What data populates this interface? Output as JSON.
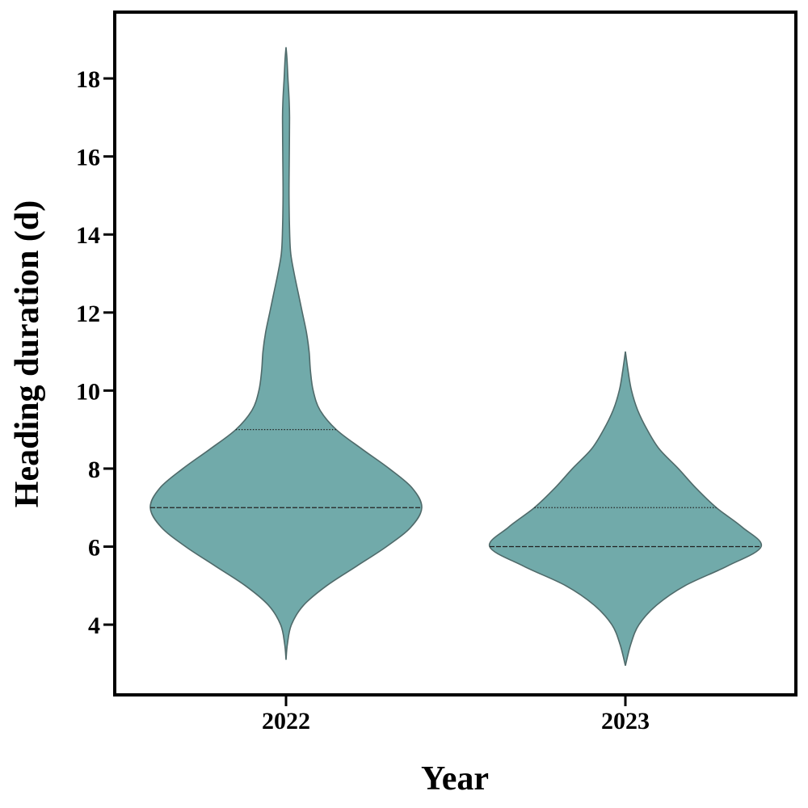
{
  "chart_data": {
    "type": "violin",
    "xlabel": "Year",
    "ylabel": "Heading duration (d)",
    "categories": [
      "2022",
      "2023"
    ],
    "ylim": [
      2.2,
      19.7
    ],
    "yticks": [
      4,
      6,
      8,
      10,
      12,
      14,
      16,
      18
    ],
    "grid": false,
    "colors": {
      "fill": "#71aaaa",
      "edge": "#4f6a6a",
      "frame": "#000000"
    },
    "violins": [
      {
        "category": "2022",
        "min": 3.1,
        "max": 18.8,
        "median": 7,
        "q3": 9,
        "profile": [
          [
            3.1,
            0.0
          ],
          [
            3.5,
            0.01
          ],
          [
            4.0,
            0.04
          ],
          [
            4.5,
            0.13
          ],
          [
            5.0,
            0.3
          ],
          [
            5.5,
            0.52
          ],
          [
            6.0,
            0.74
          ],
          [
            6.5,
            0.92
          ],
          [
            7.0,
            1.0
          ],
          [
            7.5,
            0.93
          ],
          [
            8.0,
            0.76
          ],
          [
            8.5,
            0.56
          ],
          [
            9.0,
            0.37
          ],
          [
            9.5,
            0.25
          ],
          [
            10.0,
            0.2
          ],
          [
            10.5,
            0.18
          ],
          [
            11.0,
            0.17
          ],
          [
            11.5,
            0.15
          ],
          [
            12.0,
            0.12
          ],
          [
            12.5,
            0.09
          ],
          [
            13.0,
            0.06
          ],
          [
            13.5,
            0.035
          ],
          [
            14.0,
            0.027
          ],
          [
            15.0,
            0.022
          ],
          [
            16.0,
            0.024
          ],
          [
            17.0,
            0.026
          ],
          [
            17.5,
            0.022
          ],
          [
            18.0,
            0.014
          ],
          [
            18.5,
            0.007
          ],
          [
            18.8,
            0.0
          ]
        ]
      },
      {
        "category": "2023",
        "min": 2.95,
        "max": 11.0,
        "median": 6,
        "q3": 7,
        "profile": [
          [
            2.95,
            0.0
          ],
          [
            3.5,
            0.04
          ],
          [
            4.0,
            0.1
          ],
          [
            4.5,
            0.23
          ],
          [
            5.0,
            0.44
          ],
          [
            5.5,
            0.75
          ],
          [
            6.0,
            1.0
          ],
          [
            6.5,
            0.86
          ],
          [
            7.0,
            0.67
          ],
          [
            7.5,
            0.52
          ],
          [
            8.0,
            0.39
          ],
          [
            8.5,
            0.25
          ],
          [
            9.0,
            0.16
          ],
          [
            9.5,
            0.09
          ],
          [
            10.0,
            0.045
          ],
          [
            10.5,
            0.02
          ],
          [
            11.0,
            0.0
          ]
        ]
      }
    ]
  }
}
